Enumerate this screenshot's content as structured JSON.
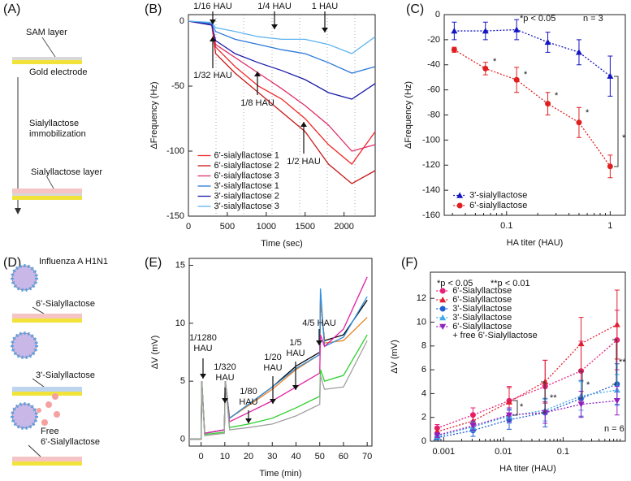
{
  "panel_a": {
    "label": "(A)",
    "texts": [
      "SAM layer",
      "Gold electrode",
      "Sialyllactose immobilization",
      "Sialyllactose layer"
    ]
  },
  "panel_d": {
    "label": "(D)",
    "texts": [
      "Influenza A H1N1",
      "6'-Sialyllactose",
      "3'-Sialyllactose",
      "Free 6'-Sialyllactose"
    ]
  },
  "chart_data": [
    {
      "type": "line",
      "panel_label": "(B)",
      "xlabel": "Time (sec)",
      "ylabel": "ΔFrequency (Hz)",
      "xlim": [
        0,
        2400
      ],
      "ylim": [
        -150,
        5
      ],
      "xticks": [
        0,
        500,
        1000,
        1500,
        2000
      ],
      "yticks": [
        0,
        -50,
        -100,
        -150
      ],
      "legend": "lower left",
      "x": [
        0,
        300,
        350,
        600,
        900,
        1200,
        1500,
        1800,
        2100,
        2400
      ],
      "series": [
        {
          "name": "6'-sialyllactose 1",
          "color": "#f02828",
          "values": [
            0,
            -2,
            -20,
            -35,
            -50,
            -60,
            -75,
            -95,
            -110,
            -85
          ]
        },
        {
          "name": "6'-sialyllactose 2",
          "color": "#c81818",
          "values": [
            0,
            -3,
            -25,
            -40,
            -55,
            -70,
            -85,
            -110,
            -125,
            -115
          ]
        },
        {
          "name": "6'-sialyllactose 3",
          "color": "#e0306a",
          "values": [
            0,
            -3,
            -18,
            -28,
            -40,
            -52,
            -65,
            -80,
            -100,
            -95
          ]
        },
        {
          "name": "3'-sialyllactose 1",
          "color": "#2a78d8",
          "values": [
            0,
            -2,
            -8,
            -14,
            -18,
            -22,
            -25,
            -32,
            -40,
            -35
          ]
        },
        {
          "name": "3'-sialyllactose 2",
          "color": "#1a1aa8",
          "values": [
            0,
            -3,
            -15,
            -25,
            -32,
            -38,
            -45,
            -55,
            -60,
            -48
          ]
        },
        {
          "name": "3'-sialyllactose 3",
          "color": "#60b4f0",
          "values": [
            0,
            -1,
            -5,
            -8,
            -12,
            -14,
            -14,
            -18,
            -25,
            -12
          ]
        }
      ],
      "annotations": [
        "1/32 HAU",
        "1/16 HAU",
        "1/8 HAU",
        "1/4 HAU",
        "1/2 HAU",
        "1 HAU"
      ]
    },
    {
      "type": "line",
      "panel_label": "(C)",
      "xlabel": "HA titer (HAU)",
      "ylabel": "ΔFrequency (Hz)",
      "xscale": "log",
      "xlim": [
        0.025,
        1.4
      ],
      "ylim": [
        -160,
        0
      ],
      "xticks": [
        0.1,
        1
      ],
      "yticks": [
        0,
        -20,
        -40,
        -60,
        -80,
        -100,
        -120,
        -140,
        -160
      ],
      "legend": "lower left",
      "linestyle": "dotted",
      "x": [
        0.03125,
        0.0625,
        0.125,
        0.25,
        0.5,
        1
      ],
      "series": [
        {
          "name": "3'-sialyllactose",
          "color": "#1414c0",
          "marker": "triangle",
          "values": [
            -13,
            -13,
            -12,
            -22,
            -30,
            -49
          ],
          "errors": [
            7,
            7,
            8,
            8,
            10,
            16
          ]
        },
        {
          "name": "6'-sialyllactose",
          "color": "#e02020",
          "marker": "circle",
          "values": [
            -28,
            -43,
            -52,
            -71,
            -86,
            -121
          ],
          "errors": [
            2,
            5,
            10,
            9,
            12,
            9
          ]
        }
      ],
      "annotations": [
        "*p < 0.05",
        "n = 3",
        "*",
        "*",
        "*",
        "*",
        "*"
      ]
    },
    {
      "type": "line",
      "panel_label": "(E)",
      "xlabel": "Time (min)",
      "ylabel": "ΔV (mV)",
      "xlim": [
        -5,
        72
      ],
      "ylim": [
        -0.6,
        15.6
      ],
      "xticks": [
        0,
        10,
        20,
        30,
        40,
        50,
        60,
        70
      ],
      "yticks": [
        0,
        5,
        10,
        15
      ],
      "x": [
        -5,
        0,
        0.3,
        1.5,
        9.8,
        10.2,
        12,
        20,
        30,
        40,
        50,
        50.3,
        52,
        60,
        70
      ],
      "series": [
        {
          "color": "#000000",
          "values": [
            0,
            0,
            5,
            0.5,
            0.8,
            5,
            1.8,
            3,
            4.5,
            6.3,
            7.5,
            12,
            8.5,
            9,
            12
          ]
        },
        {
          "color": "#f08020",
          "values": [
            0,
            0,
            5,
            0.5,
            0.8,
            5,
            1.8,
            2.9,
            4.3,
            6,
            7.3,
            12,
            8.3,
            8.5,
            10.5
          ]
        },
        {
          "color": "#3090e0",
          "values": [
            0,
            0,
            5,
            0.5,
            0.8,
            5,
            1.8,
            3,
            4.5,
            6.1,
            7.3,
            13,
            8,
            8.8,
            12.3
          ]
        },
        {
          "color": "#e020a0",
          "values": [
            0,
            0,
            5,
            0.5,
            0.8,
            5,
            1.5,
            2.3,
            3.3,
            4.5,
            5.7,
            9,
            8,
            9.5,
            14
          ]
        },
        {
          "color": "#30d030",
          "values": [
            0,
            0,
            5,
            0.4,
            0.6,
            5,
            1,
            1.3,
            1.8,
            2.7,
            3.7,
            6,
            5,
            5.5,
            9
          ]
        },
        {
          "color": "#a0a0a0",
          "values": [
            0,
            0,
            5,
            0.3,
            0.5,
            5,
            0.8,
            1,
            1.3,
            2,
            3,
            5.5,
            4.3,
            4.5,
            8.5
          ]
        }
      ],
      "annotations": [
        "1/1280 HAU",
        "1/320 HAU",
        "1/80 HAU",
        "1/20 HAU",
        "1/5 HAU",
        "4/5 HAU"
      ]
    },
    {
      "type": "line",
      "panel_label": "(F)",
      "xlabel": "HA titer (HAU)",
      "ylabel": "ΔV (mV)",
      "xscale": "log",
      "xlim": [
        0.0006,
        1.1
      ],
      "ylim": [
        0,
        14.2
      ],
      "xticks": [
        0.001,
        0.01,
        0.1
      ],
      "yticks": [
        0,
        2,
        4,
        6,
        8,
        10,
        12
      ],
      "legend": "upper left",
      "linestyle": "dotted",
      "x": [
        0.00078,
        0.0031,
        0.0125,
        0.05,
        0.2,
        0.8
      ],
      "series": [
        {
          "name": "6'-Sialyllactose",
          "color": "#e8207a",
          "marker": "circle",
          "values": [
            1.1,
            2.2,
            3.4,
            4.6,
            5.9,
            8.5
          ],
          "errors": [
            0.3,
            0.6,
            1.2,
            2.2,
            2.5,
            2.5
          ]
        },
        {
          "name": "6'-Sialyllactose",
          "color": "#e02030",
          "marker": "triangle",
          "values": [
            0.8,
            1.7,
            3.3,
            5.0,
            8.2,
            9.8
          ],
          "errors": [
            0.3,
            0.5,
            1.2,
            1.8,
            2.2,
            2.9
          ]
        },
        {
          "name": "3'-Sialyllactose",
          "color": "#2060d0",
          "marker": "circle",
          "values": [
            0.3,
            0.9,
            1.8,
            2.4,
            3.6,
            4.8
          ],
          "errors": [
            0.2,
            0.5,
            0.8,
            1.2,
            1.5,
            1.7
          ]
        },
        {
          "name": "3'-Sialyllactose",
          "color": "#40a8e8",
          "marker": "triangle",
          "values": [
            0.4,
            1.2,
            2.1,
            2.6,
            3.8,
            4.3
          ],
          "errors": [
            0.2,
            0.4,
            0.6,
            0.9,
            1.2,
            1.3
          ]
        },
        {
          "name": "6'-Sialyllactose + free 6'-Sialyllactose",
          "color": "#9020c0",
          "marker": "triangle-down",
          "values": [
            0.5,
            1.3,
            2.2,
            2.4,
            3.1,
            3.4
          ],
          "errors": [
            0.2,
            0.4,
            0.6,
            0.9,
            1.1,
            1.2
          ]
        }
      ],
      "annotations": [
        "*p < 0.05",
        "**p < 0.01",
        "n = 6",
        "*",
        "**",
        "*",
        "**"
      ]
    }
  ]
}
